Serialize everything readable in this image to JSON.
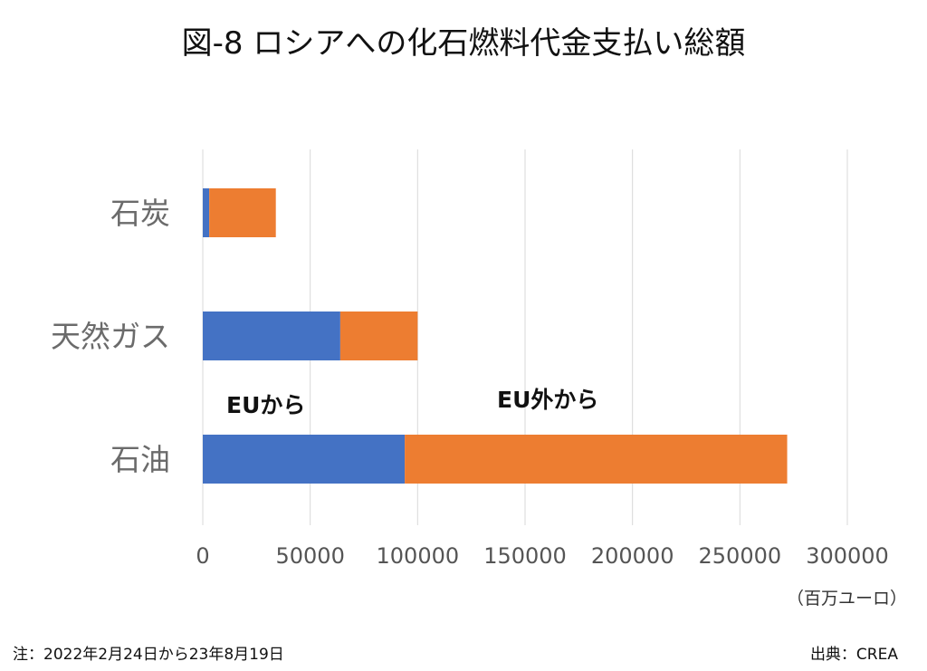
{
  "chart_data": {
    "type": "bar",
    "orientation": "horizontal",
    "stacked": true,
    "title": "図-8 ロシアへの化石燃料代金支払い総額",
    "categories": [
      "石炭",
      "天然ガス",
      "石油"
    ],
    "series": [
      {
        "name": "EUから",
        "color": "#4472C4",
        "values": [
          3000,
          64000,
          94000
        ]
      },
      {
        "name": "EU外から",
        "color": "#ED7D31",
        "values": [
          31000,
          36000,
          178000
        ]
      }
    ],
    "xlim": [
      0,
      300000
    ],
    "x_ticks": [
      0,
      50000,
      100000,
      150000,
      200000,
      250000,
      300000
    ],
    "x_tick_labels": [
      "0",
      "50000",
      "100000",
      "150000",
      "200000",
      "250000",
      "300000"
    ],
    "unit": "（百万ユーロ）",
    "grid": true,
    "legend": "none"
  },
  "footnote": "注：2022年2月24日から23年8月19日",
  "source": "出典：CREA"
}
